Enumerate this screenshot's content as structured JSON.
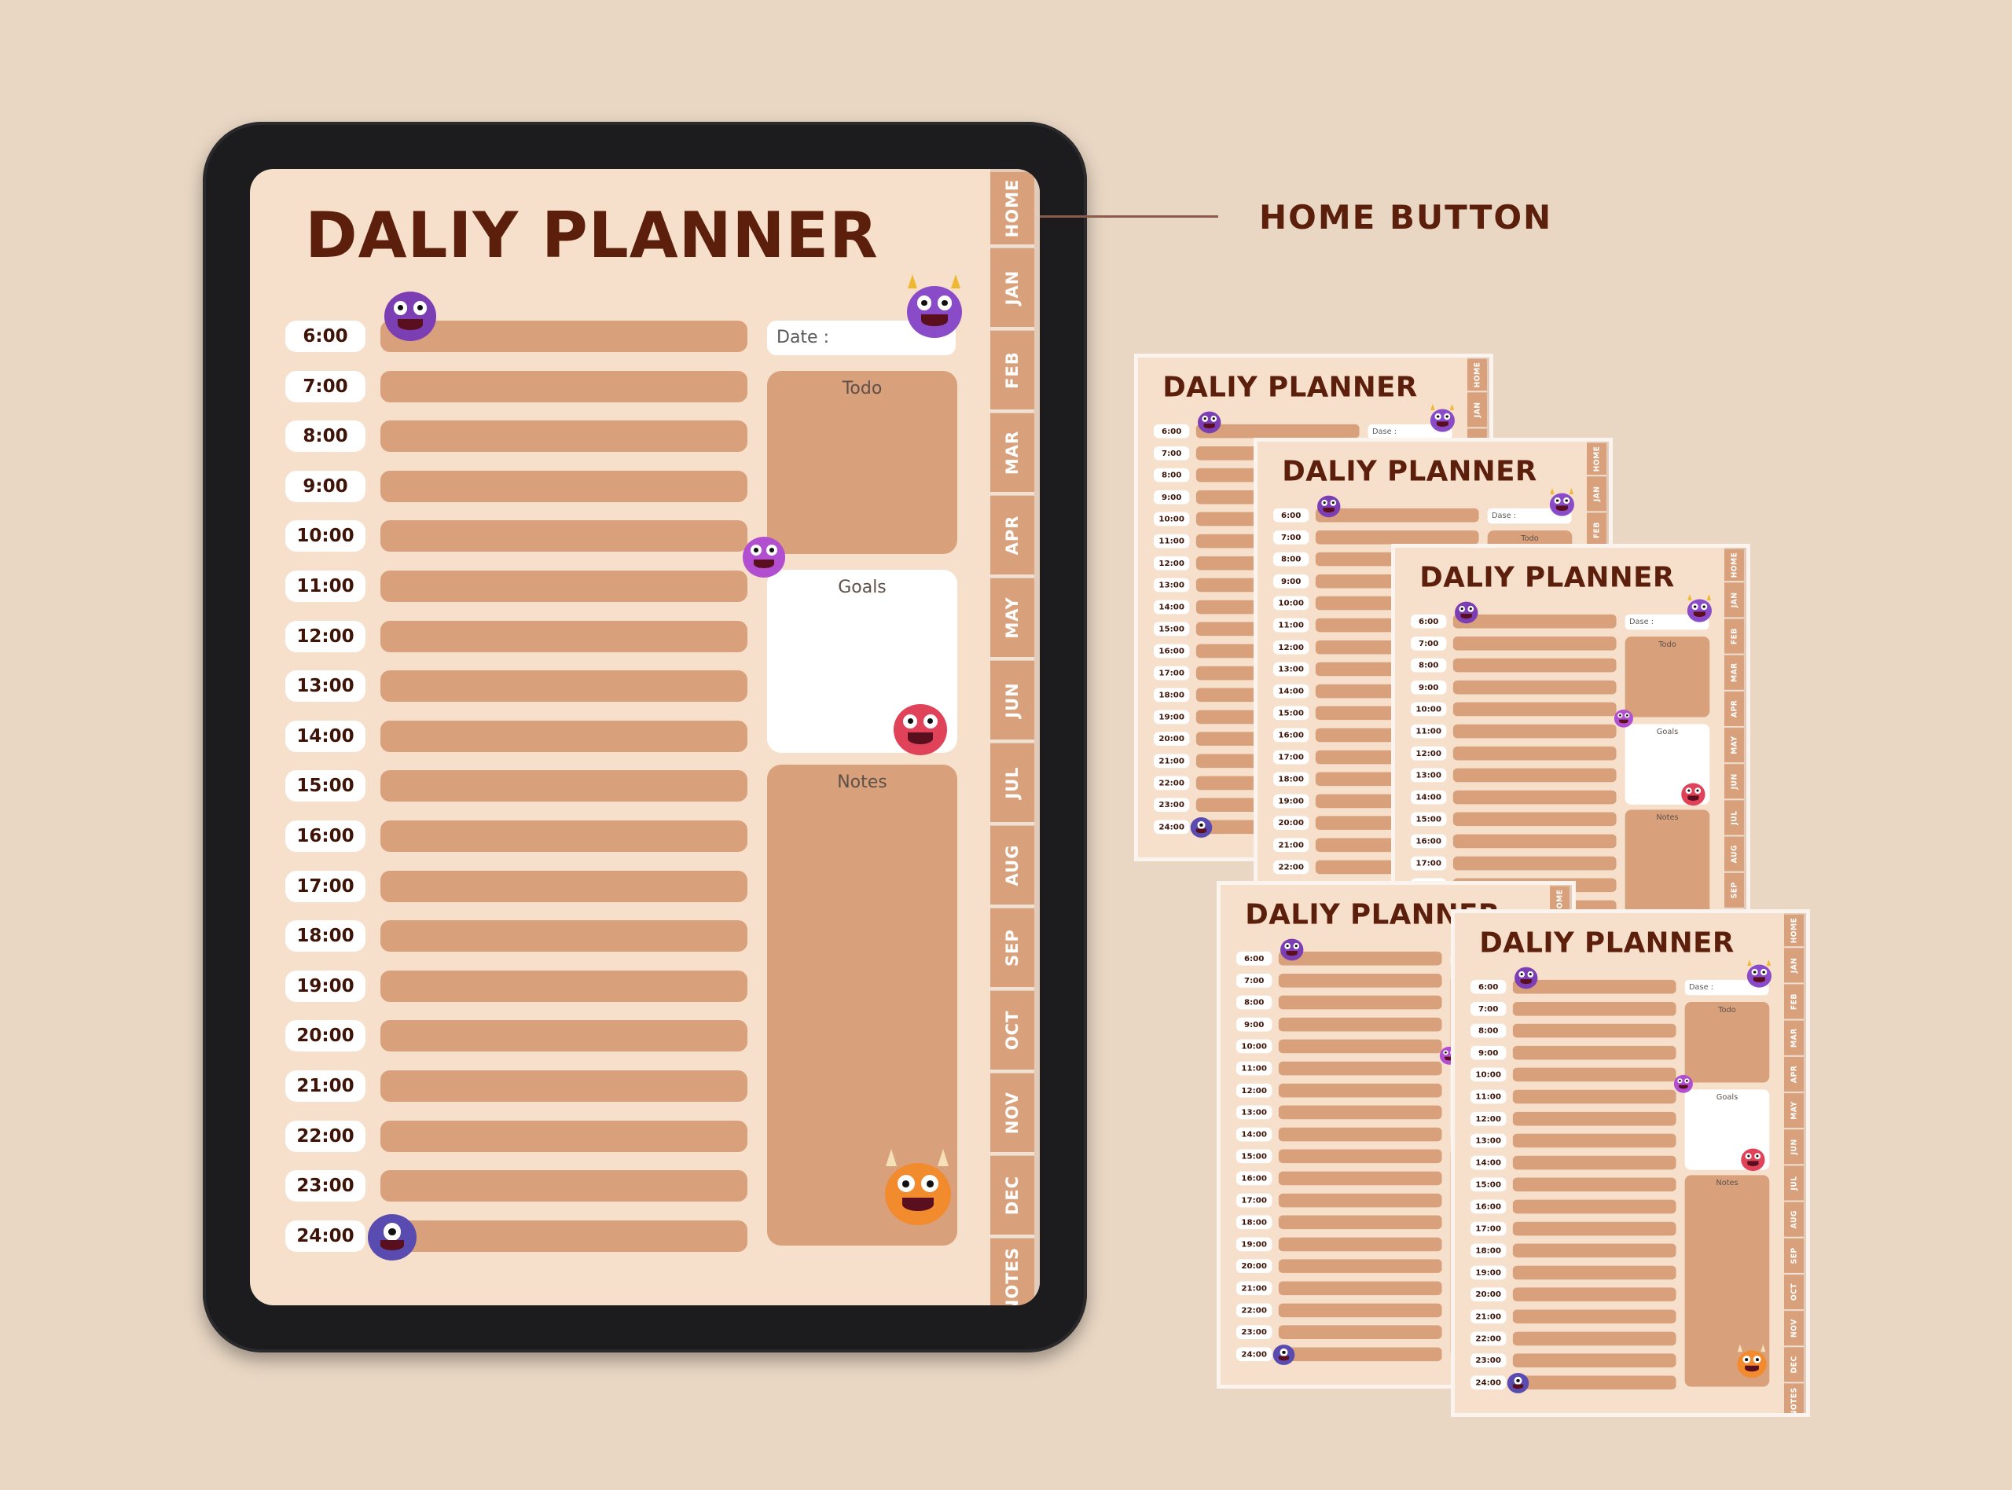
{
  "planner": {
    "title": "DALIY PLANNER",
    "date_label": "Date :",
    "times": [
      "6:00",
      "7:00",
      "8:00",
      "9:00",
      "10:00",
      "11:00",
      "12:00",
      "13:00",
      "14:00",
      "15:00",
      "16:00",
      "17:00",
      "18:00",
      "19:00",
      "20:00",
      "21:00",
      "22:00",
      "23:00",
      "24:00"
    ],
    "todo_label": "Todo",
    "goals_label": "Goals",
    "notes_label": "Notes",
    "tabs": [
      "HOME",
      "JAN",
      "FEB",
      "MAR",
      "APR",
      "MAY",
      "JUN",
      "JUL",
      "AUG",
      "SEP",
      "OCT",
      "NOV",
      "DEC",
      "NOTES"
    ]
  },
  "thumbnail_date_label": "Dase :",
  "callout": {
    "label": "HOME BUTTON"
  },
  "colors": {
    "background": "#e9d7c4",
    "page": "#f6e0cc",
    "bar": "#d9a07c",
    "title": "#5c1f0c",
    "tablet_frame": "#1c1c1e"
  },
  "monster_icons": [
    "purple-horned-monster-icon",
    "purple-tentacle-monster-icon",
    "pink-alien-monster-icon",
    "red-monster-icon",
    "orange-monster-icon",
    "blue-cyclops-monster-icon"
  ]
}
